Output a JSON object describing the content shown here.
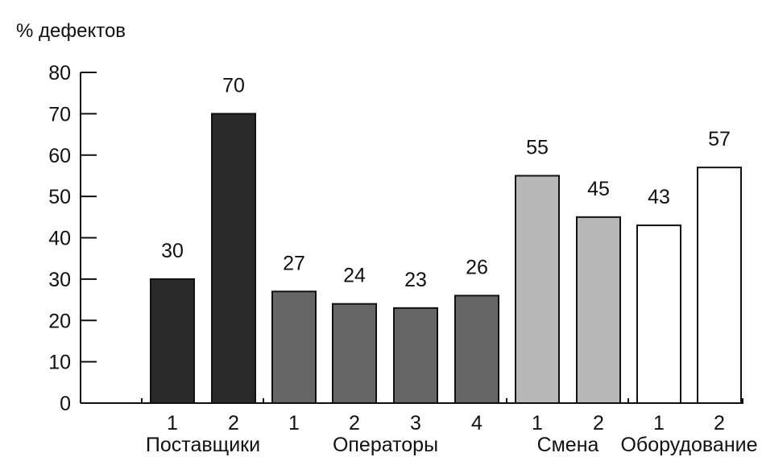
{
  "chart_data": {
    "type": "bar",
    "title": "",
    "ylabel": "% дефектов",
    "xlabel": "",
    "ylim": [
      0,
      80
    ],
    "yticks": [
      0,
      10,
      20,
      30,
      40,
      50,
      60,
      70,
      80
    ],
    "grid": false,
    "legend": "none",
    "groups": [
      {
        "name": "Поставщики",
        "color": "#2a2a2a",
        "categories": [
          "1",
          "2"
        ],
        "values": [
          30,
          70
        ]
      },
      {
        "name": "Операторы",
        "color": "#666666",
        "categories": [
          "1",
          "2",
          "3",
          "4"
        ],
        "values": [
          27,
          24,
          23,
          26
        ]
      },
      {
        "name": "Смена",
        "color": "#b8b8b8",
        "categories": [
          "1",
          "2"
        ],
        "values": [
          55,
          45
        ]
      },
      {
        "name": "Оборудование",
        "color": "#ffffff",
        "categories": [
          "1",
          "2"
        ],
        "values": [
          43,
          57
        ]
      }
    ]
  }
}
